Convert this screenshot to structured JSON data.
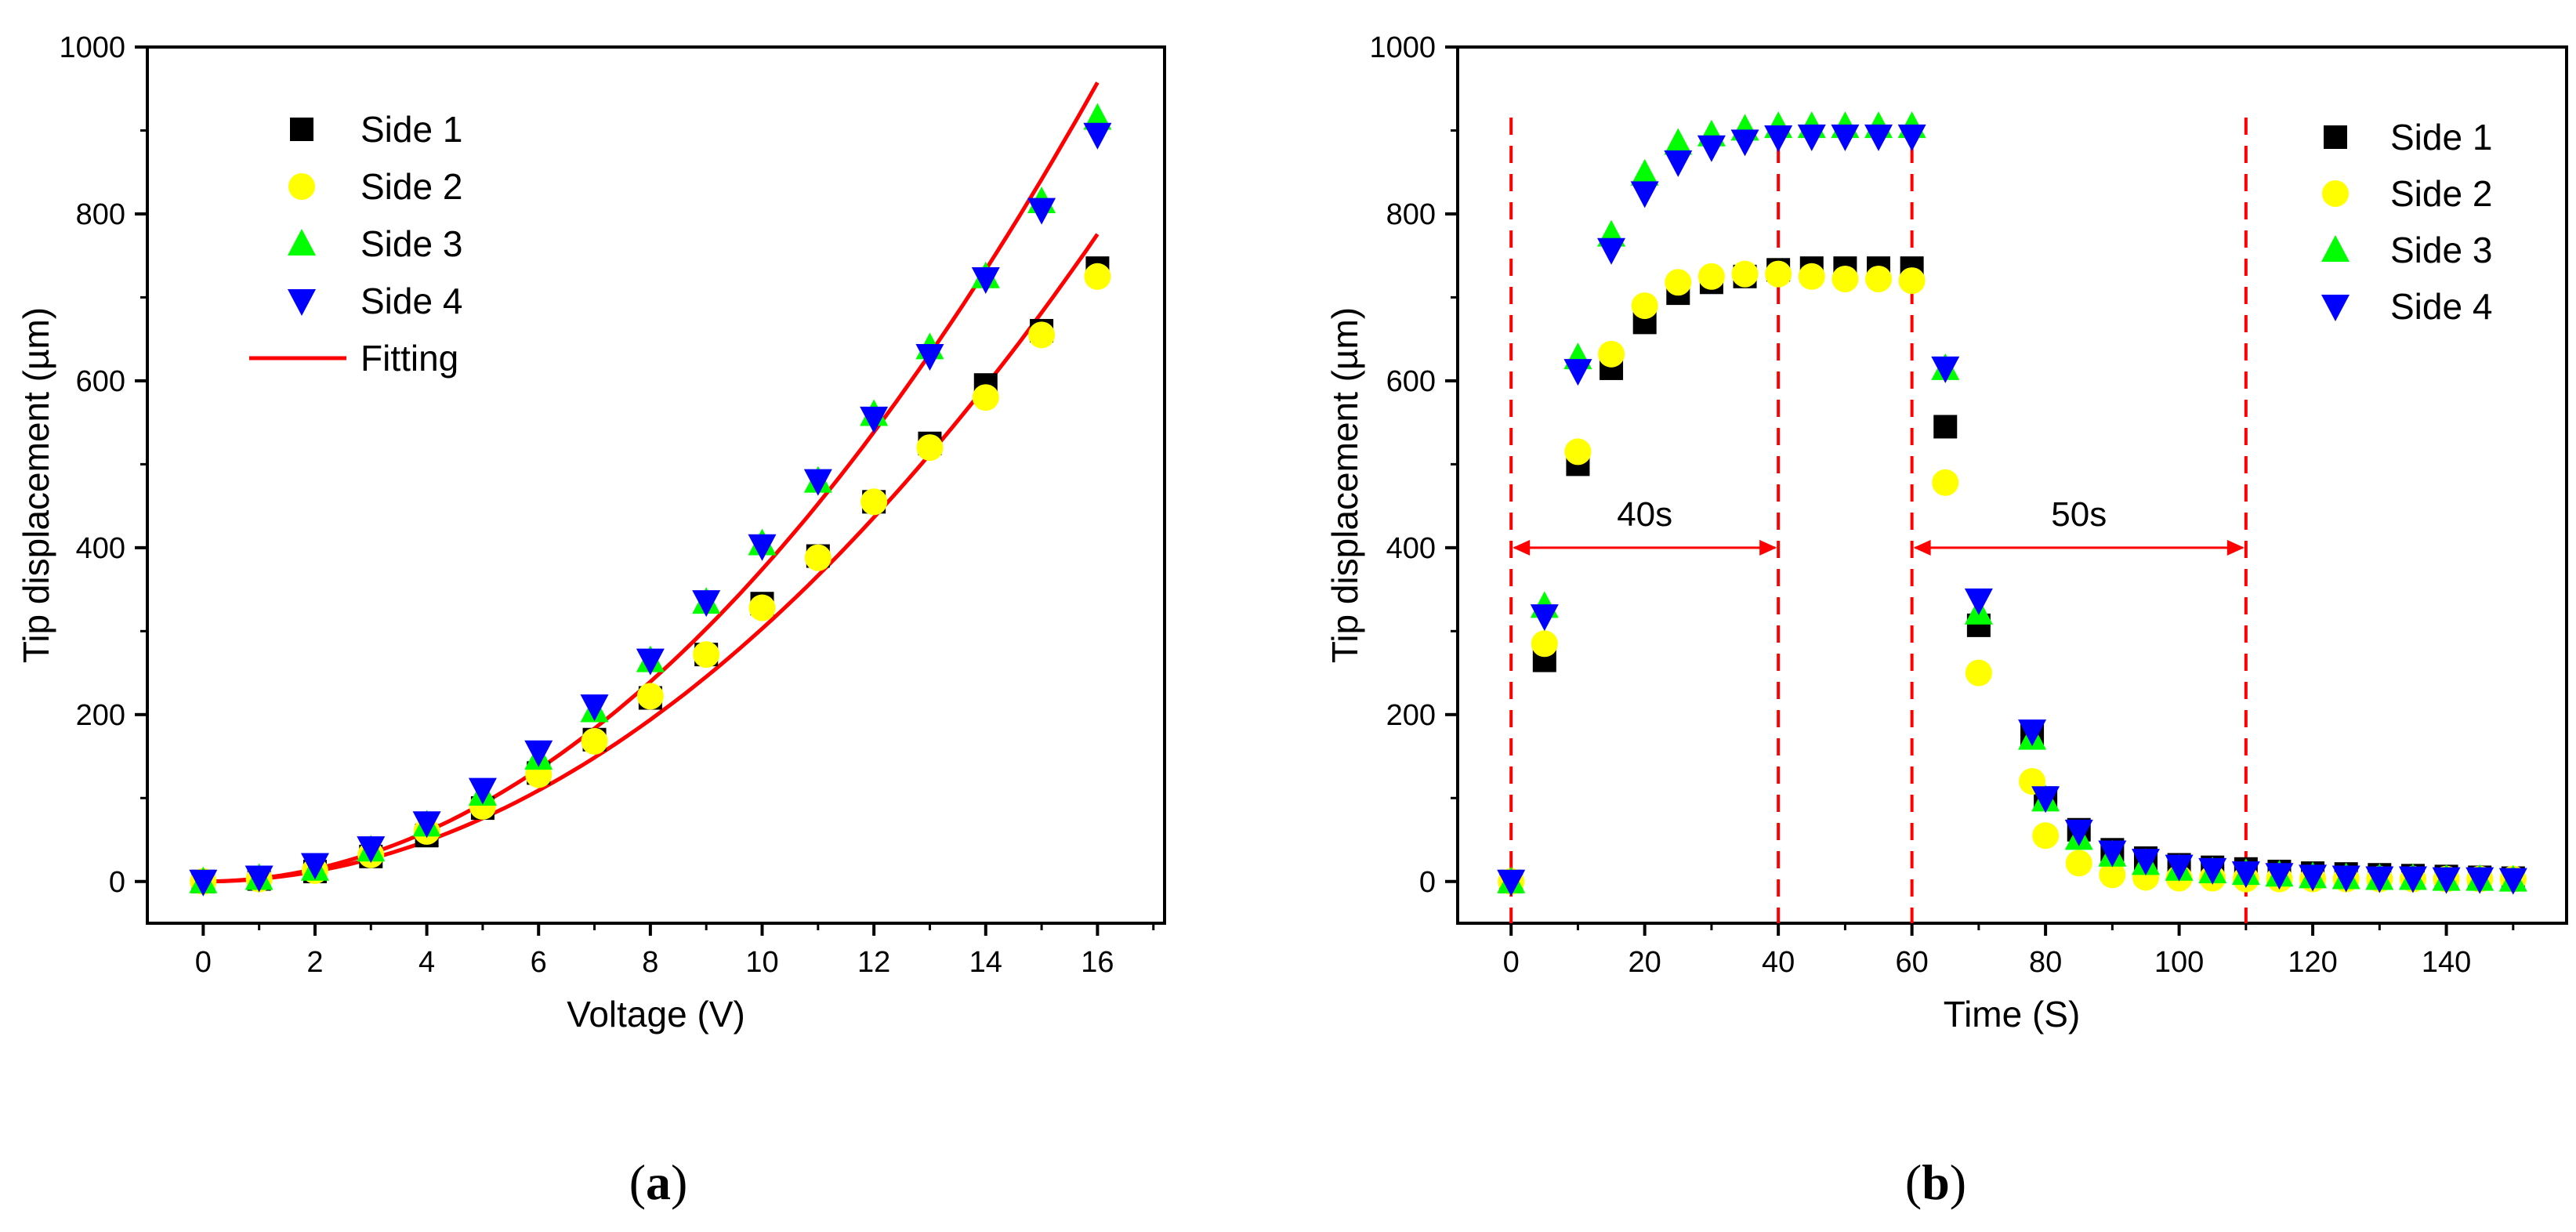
{
  "chart_data": [
    {
      "panel": "a",
      "type": "scatter",
      "caption_open": "(",
      "caption_letter": "a",
      "caption_close": ")",
      "xlabel": "Voltage (V)",
      "ylabel": "Tip displacement (µm)",
      "xlim": [
        -1,
        17.2
      ],
      "ylim": [
        -50,
        1000
      ],
      "xticks": [
        0,
        2,
        4,
        6,
        8,
        10,
        12,
        14,
        16
      ],
      "yticks": [
        0,
        200,
        400,
        600,
        800,
        1000
      ],
      "legend_position": "top-left",
      "x": [
        0,
        1,
        2,
        3,
        4,
        5,
        6,
        7,
        8,
        9,
        10,
        11,
        12,
        13,
        14,
        15,
        16
      ],
      "series": [
        {
          "name": "Side 1",
          "marker": "square",
          "color": "#000000",
          "values": [
            0,
            3,
            12,
            30,
            55,
            88,
            130,
            170,
            220,
            272,
            333,
            390,
            455,
            525,
            595,
            660,
            735
          ]
        },
        {
          "name": "Side 2",
          "marker": "circle",
          "color": "#ffff00",
          "values": [
            0,
            3,
            13,
            32,
            60,
            90,
            128,
            168,
            222,
            272,
            328,
            388,
            455,
            520,
            580,
            655,
            725
          ]
        },
        {
          "name": "Side 3",
          "marker": "triangle-up",
          "color": "#00ff00",
          "values": [
            0,
            4,
            15,
            38,
            68,
            105,
            148,
            205,
            265,
            335,
            405,
            480,
            560,
            640,
            725,
            815,
            915
          ]
        },
        {
          "name": "Side 4",
          "marker": "triangle-down",
          "color": "#0000ff",
          "values": [
            0,
            5,
            20,
            40,
            70,
            110,
            155,
            210,
            265,
            335,
            402,
            480,
            555,
            630,
            722,
            805,
            895
          ]
        }
      ],
      "fits": [
        {
          "name": "Fitting",
          "color": "#ff0000",
          "coefficient": 3.74
        },
        {
          "name": "",
          "color": "#ff0000",
          "coefficient": 3.03
        }
      ],
      "fit_legend_label": "Fitting"
    },
    {
      "panel": "b",
      "type": "scatter",
      "caption_open": "(",
      "caption_letter": "b",
      "caption_close": ")",
      "xlabel": "Time (S)",
      "ylabel": "Tip displacement (µm)",
      "xlim": [
        -8,
        158
      ],
      "ylim": [
        -50,
        1000
      ],
      "xticks": [
        0,
        20,
        40,
        60,
        80,
        100,
        120,
        140
      ],
      "yticks": [
        0,
        200,
        400,
        600,
        800,
        1000
      ],
      "legend_position": "top-right",
      "x": [
        0,
        5,
        10,
        15,
        20,
        25,
        30,
        35,
        40,
        45,
        50,
        55,
        60,
        65,
        70,
        78,
        80,
        85,
        90,
        95,
        100,
        105,
        110,
        115,
        120,
        125,
        130,
        135,
        140,
        145,
        150
      ],
      "series": [
        {
          "name": "Side 1",
          "marker": "square",
          "color": "#000000",
          "values": [
            0,
            265,
            500,
            615,
            670,
            705,
            718,
            725,
            733,
            735,
            735,
            735,
            735,
            545,
            307,
            175,
            100,
            62,
            38,
            28,
            20,
            17,
            15,
            12,
            10,
            9,
            8,
            7,
            6,
            5,
            4
          ]
        },
        {
          "name": "Side 2",
          "marker": "circle",
          "color": "#ffff00",
          "values": [
            0,
            285,
            515,
            632,
            690,
            718,
            725,
            728,
            728,
            725,
            722,
            722,
            720,
            478,
            250,
            120,
            55,
            22,
            8,
            5,
            4,
            4,
            3,
            3,
            3,
            3,
            3,
            3,
            3,
            3,
            3
          ]
        },
        {
          "name": "Side 3",
          "marker": "triangle-up",
          "color": "#00ff00",
          "values": [
            0,
            330,
            628,
            775,
            848,
            885,
            895,
            902,
            905,
            905,
            905,
            905,
            905,
            615,
            322,
            172,
            98,
            52,
            32,
            22,
            15,
            12,
            10,
            8,
            6,
            5,
            4,
            4,
            3,
            3,
            2
          ]
        },
        {
          "name": "Side 4",
          "marker": "triangle-down",
          "color": "#0000ff",
          "values": [
            0,
            318,
            612,
            757,
            825,
            862,
            880,
            887,
            892,
            893,
            893,
            893,
            893,
            615,
            337,
            180,
            100,
            60,
            35,
            25,
            18,
            14,
            10,
            8,
            6,
            5,
            4,
            4,
            3,
            3,
            2
          ]
        }
      ],
      "vlines": [
        0,
        40,
        60,
        110
      ],
      "spans": [
        {
          "from": 0,
          "to": 40,
          "y": 400,
          "label": "40s"
        },
        {
          "from": 60,
          "to": 110,
          "y": 400,
          "label": "50s"
        }
      ]
    }
  ]
}
